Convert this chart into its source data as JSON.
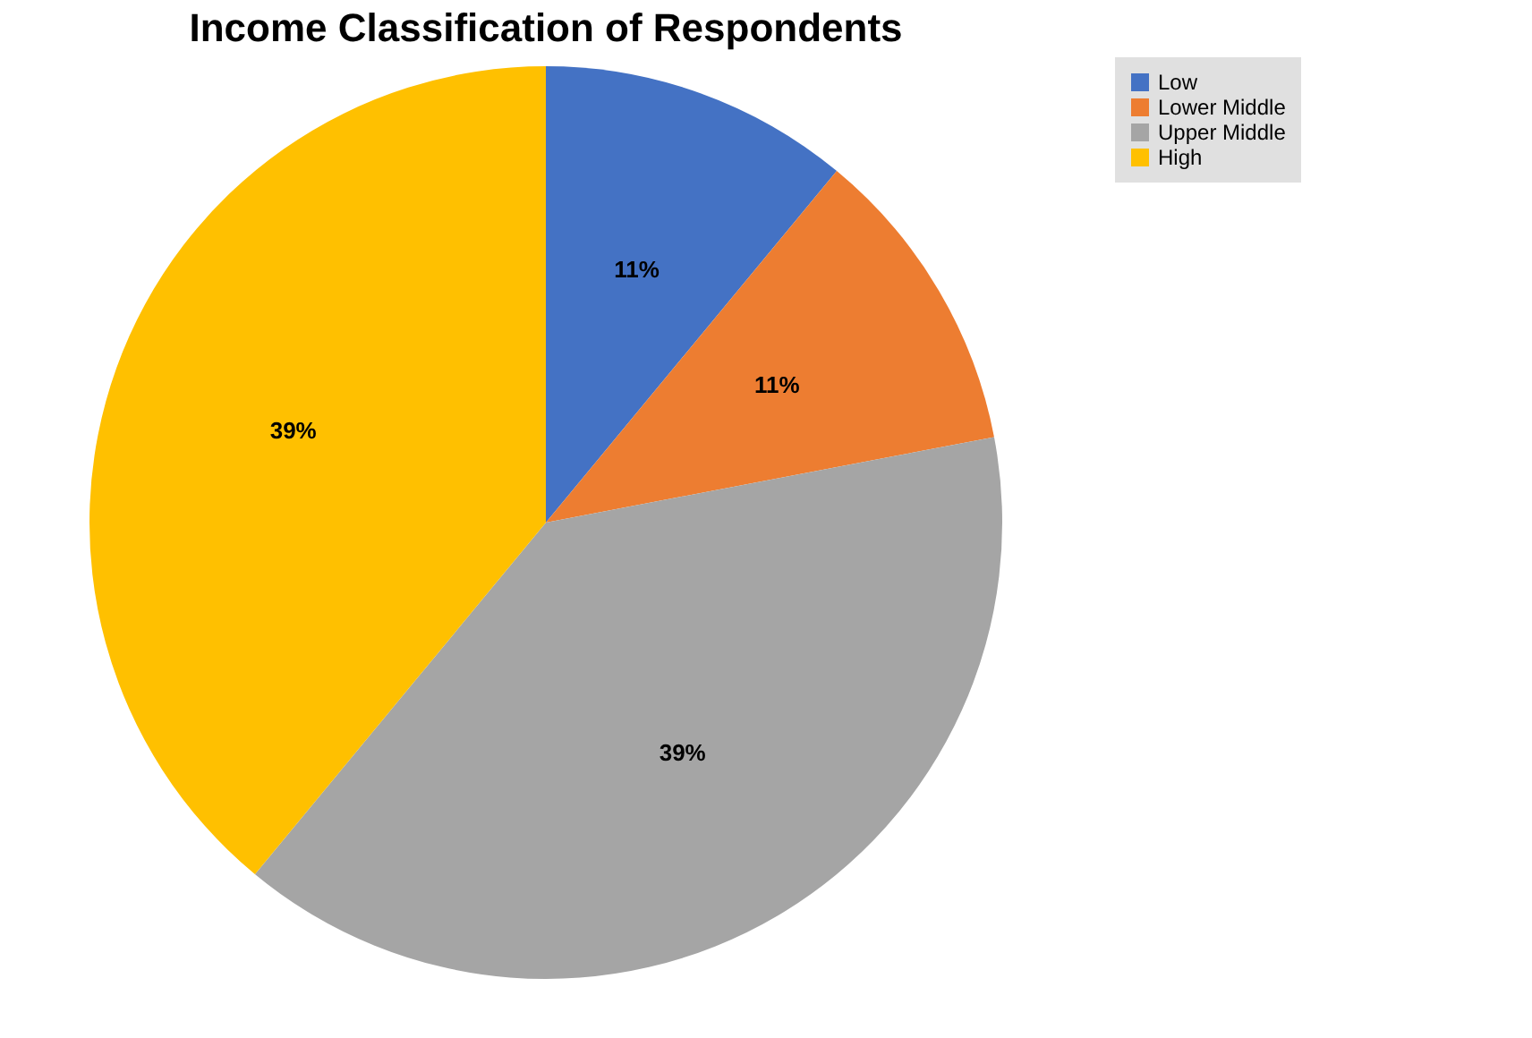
{
  "chart_data": {
    "type": "pie",
    "title": "Income Classification of Respondents",
    "categories": [
      "Low",
      "Lower Middle",
      "Upper Middle",
      "High"
    ],
    "values": [
      11,
      11,
      39,
      39
    ],
    "colors": [
      "#4472c4",
      "#ed7d31",
      "#a5a5a5",
      "#ffc000"
    ],
    "value_labels": [
      "11%",
      "11%",
      "39%",
      "39%"
    ],
    "legend": "right"
  }
}
